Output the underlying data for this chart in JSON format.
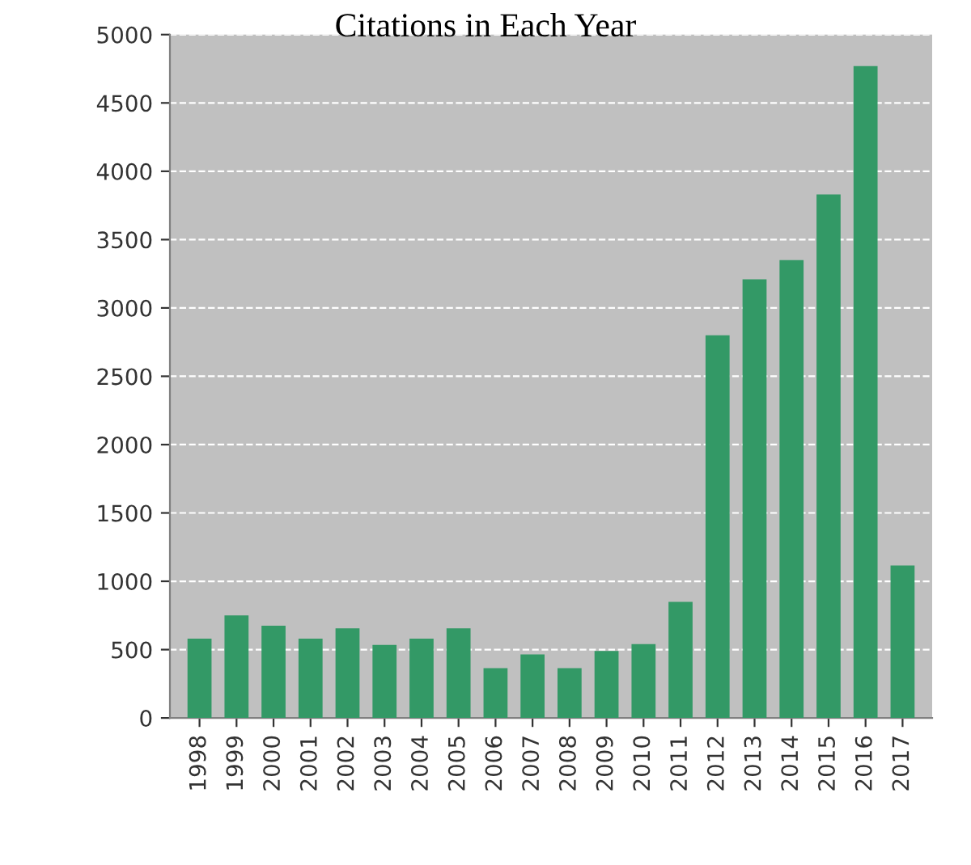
{
  "chart_data": {
    "type": "bar",
    "title": "Citations in Each Year",
    "categories": [
      "1998",
      "1999",
      "2000",
      "2001",
      "2002",
      "2003",
      "2004",
      "2005",
      "2006",
      "2007",
      "2008",
      "2009",
      "2010",
      "2011",
      "2012",
      "2013",
      "2014",
      "2015",
      "2016",
      "2017"
    ],
    "values": [
      580,
      750,
      675,
      580,
      655,
      535,
      580,
      655,
      365,
      465,
      365,
      490,
      540,
      850,
      2800,
      3210,
      3350,
      3830,
      4770,
      1115
    ],
    "color": "#339966",
    "ylim": [
      0,
      5000
    ],
    "yticks": [
      0,
      500,
      1000,
      1500,
      2000,
      2500,
      3000,
      3500,
      4000,
      4500,
      5000
    ],
    "grid": "y"
  }
}
